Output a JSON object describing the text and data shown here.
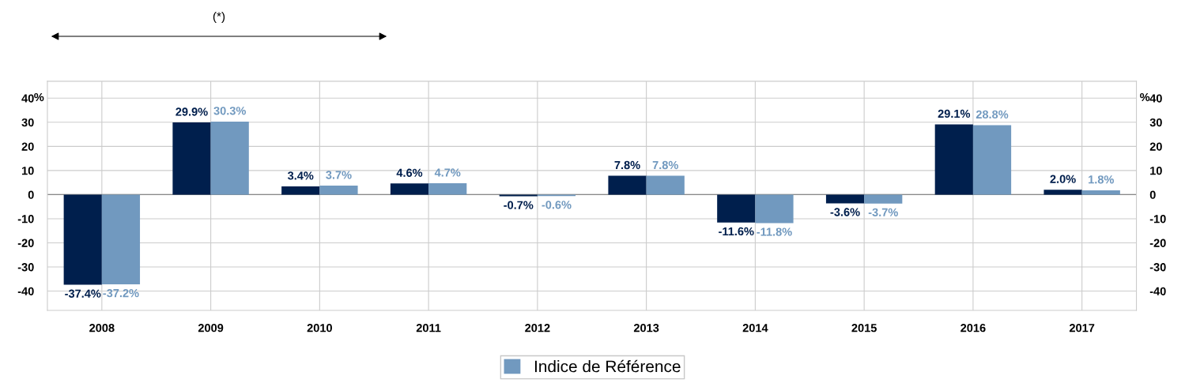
{
  "chart_data": {
    "type": "bar",
    "categories": [
      "2008",
      "2009",
      "2010",
      "2011",
      "2012",
      "2013",
      "2014",
      "2015",
      "2016",
      "2017"
    ],
    "series": [
      {
        "color": "#001f4d",
        "values": [
          -37.4,
          29.9,
          3.4,
          4.6,
          -0.7,
          7.8,
          -11.6,
          -3.6,
          29.1,
          2.0
        ],
        "value_labels": [
          "-37.4%",
          "29.9%",
          "3.4%",
          "4.6%",
          "-0.7%",
          "7.8%",
          "-11.6%",
          "-3.6%",
          "29.1%",
          "2.0%"
        ]
      },
      {
        "name": "Indice de Référence",
        "color": "#7199bf",
        "values": [
          -37.2,
          30.3,
          3.7,
          4.7,
          -0.6,
          7.8,
          -11.8,
          -3.7,
          28.8,
          1.8
        ],
        "value_labels": [
          "-37.2%",
          "30.3%",
          "3.7%",
          "4.7%",
          "-0.6%",
          "7.8%",
          "-11.8%",
          "-3.7%",
          "28.8%",
          "1.8%"
        ]
      }
    ],
    "ylabel": "%",
    "y2label": "%",
    "ylim": [
      -48,
      47
    ],
    "yticks": [
      -40,
      -30,
      -20,
      -10,
      0,
      10,
      20,
      30,
      40
    ],
    "y2lim": [
      -48,
      47
    ],
    "y2ticks": [
      -40,
      -30,
      -20,
      -10,
      0,
      10,
      20,
      30,
      40
    ],
    "grid": true,
    "legend": "bottom",
    "annotations": [
      "(*)"
    ]
  }
}
